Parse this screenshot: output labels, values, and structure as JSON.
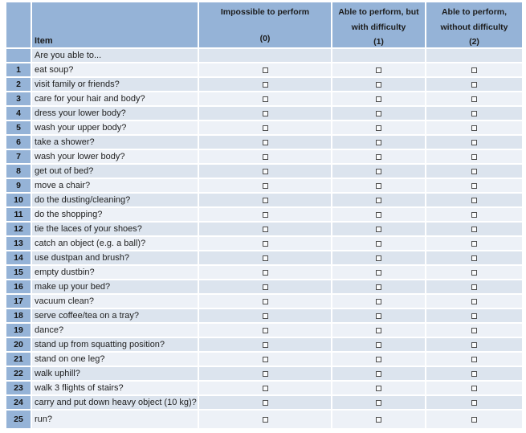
{
  "table": {
    "item_header": "Item",
    "intro_row": "Are you able to...",
    "columns": [
      {
        "label": "Impossible to perform",
        "score": "(0)"
      },
      {
        "label": "Able to perform, but with difficulty",
        "score": "(1)"
      },
      {
        "label": "Able to perform, without difficulty",
        "score": "(2)"
      }
    ],
    "items": [
      {
        "num": "1",
        "text": "eat soup?"
      },
      {
        "num": "2",
        "text": "visit family or friends?"
      },
      {
        "num": "3",
        "text": "care for your hair and body?"
      },
      {
        "num": "4",
        "text": "dress your lower body?"
      },
      {
        "num": "5",
        "text": "wash your upper body?"
      },
      {
        "num": "6",
        "text": "take a shower?"
      },
      {
        "num": "7",
        "text": "wash your lower body?"
      },
      {
        "num": "8",
        "text": "get out of bed?"
      },
      {
        "num": "9",
        "text": "move a chair?"
      },
      {
        "num": "10",
        "text": "do the dusting/cleaning?"
      },
      {
        "num": "11",
        "text": "do the shopping?"
      },
      {
        "num": "12",
        "text": "tie the laces of your shoes?"
      },
      {
        "num": "13",
        "text": "catch an object (e.g. a ball)?"
      },
      {
        "num": "14",
        "text": "use dustpan and brush?"
      },
      {
        "num": "15",
        "text": "empty dustbin?"
      },
      {
        "num": "16",
        "text": "make up your bed?"
      },
      {
        "num": "17",
        "text": "vacuum clean?"
      },
      {
        "num": "18",
        "text": "serve coffee/tea on a tray?"
      },
      {
        "num": "19",
        "text": "dance?"
      },
      {
        "num": "20",
        "text": "stand up from squatting position?"
      },
      {
        "num": "21",
        "text": "stand on one leg?"
      },
      {
        "num": "22",
        "text": "walk uphill?"
      },
      {
        "num": "23",
        "text": "walk 3 flights of stairs?"
      },
      {
        "num": "24",
        "text": "carry and put down heavy object (10 kg)?"
      },
      {
        "num": "25",
        "text": "run?"
      }
    ]
  },
  "colors": {
    "header_blue": "#95b3d7",
    "stripe_light": "#edf1f7",
    "stripe_dark": "#dce4ee",
    "checkbox_border": "#4d4d4d"
  }
}
